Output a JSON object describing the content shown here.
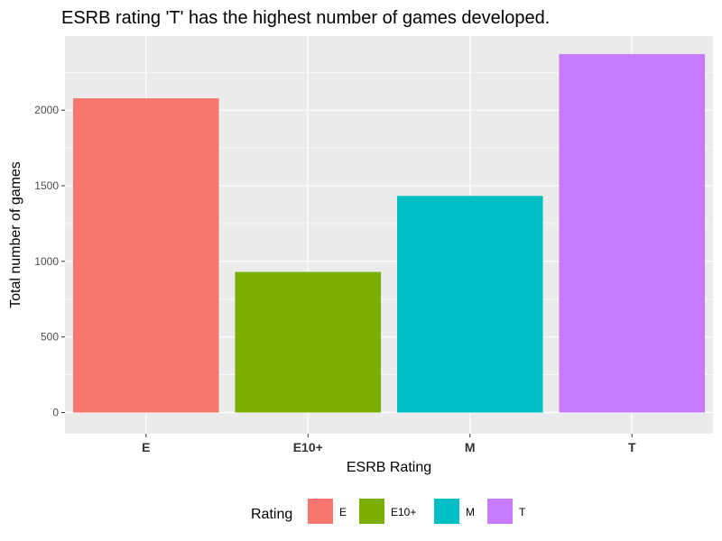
{
  "chart_data": {
    "type": "bar",
    "title": "ESRB rating 'T' has the highest number of games developed.",
    "xlabel": "ESRB Rating",
    "ylabel": "Total number of games",
    "categories": [
      "E",
      "E10+",
      "M",
      "T"
    ],
    "values": [
      2078,
      930,
      1433,
      2371
    ],
    "colors": [
      "#F8766D",
      "#7CAE00",
      "#00BFC4",
      "#C77CFF"
    ],
    "ylim": [
      -140,
      2490
    ],
    "yticks": [
      0,
      500,
      1000,
      1500,
      2000
    ],
    "ytick_labels": [
      "0",
      "500",
      "1000",
      "1500",
      "2000"
    ],
    "grid": true,
    "panel_background": "#EBEBEB",
    "legend": {
      "title": "Rating",
      "position": "bottom",
      "items": [
        "E",
        "E10+",
        "M",
        "T"
      ]
    }
  }
}
